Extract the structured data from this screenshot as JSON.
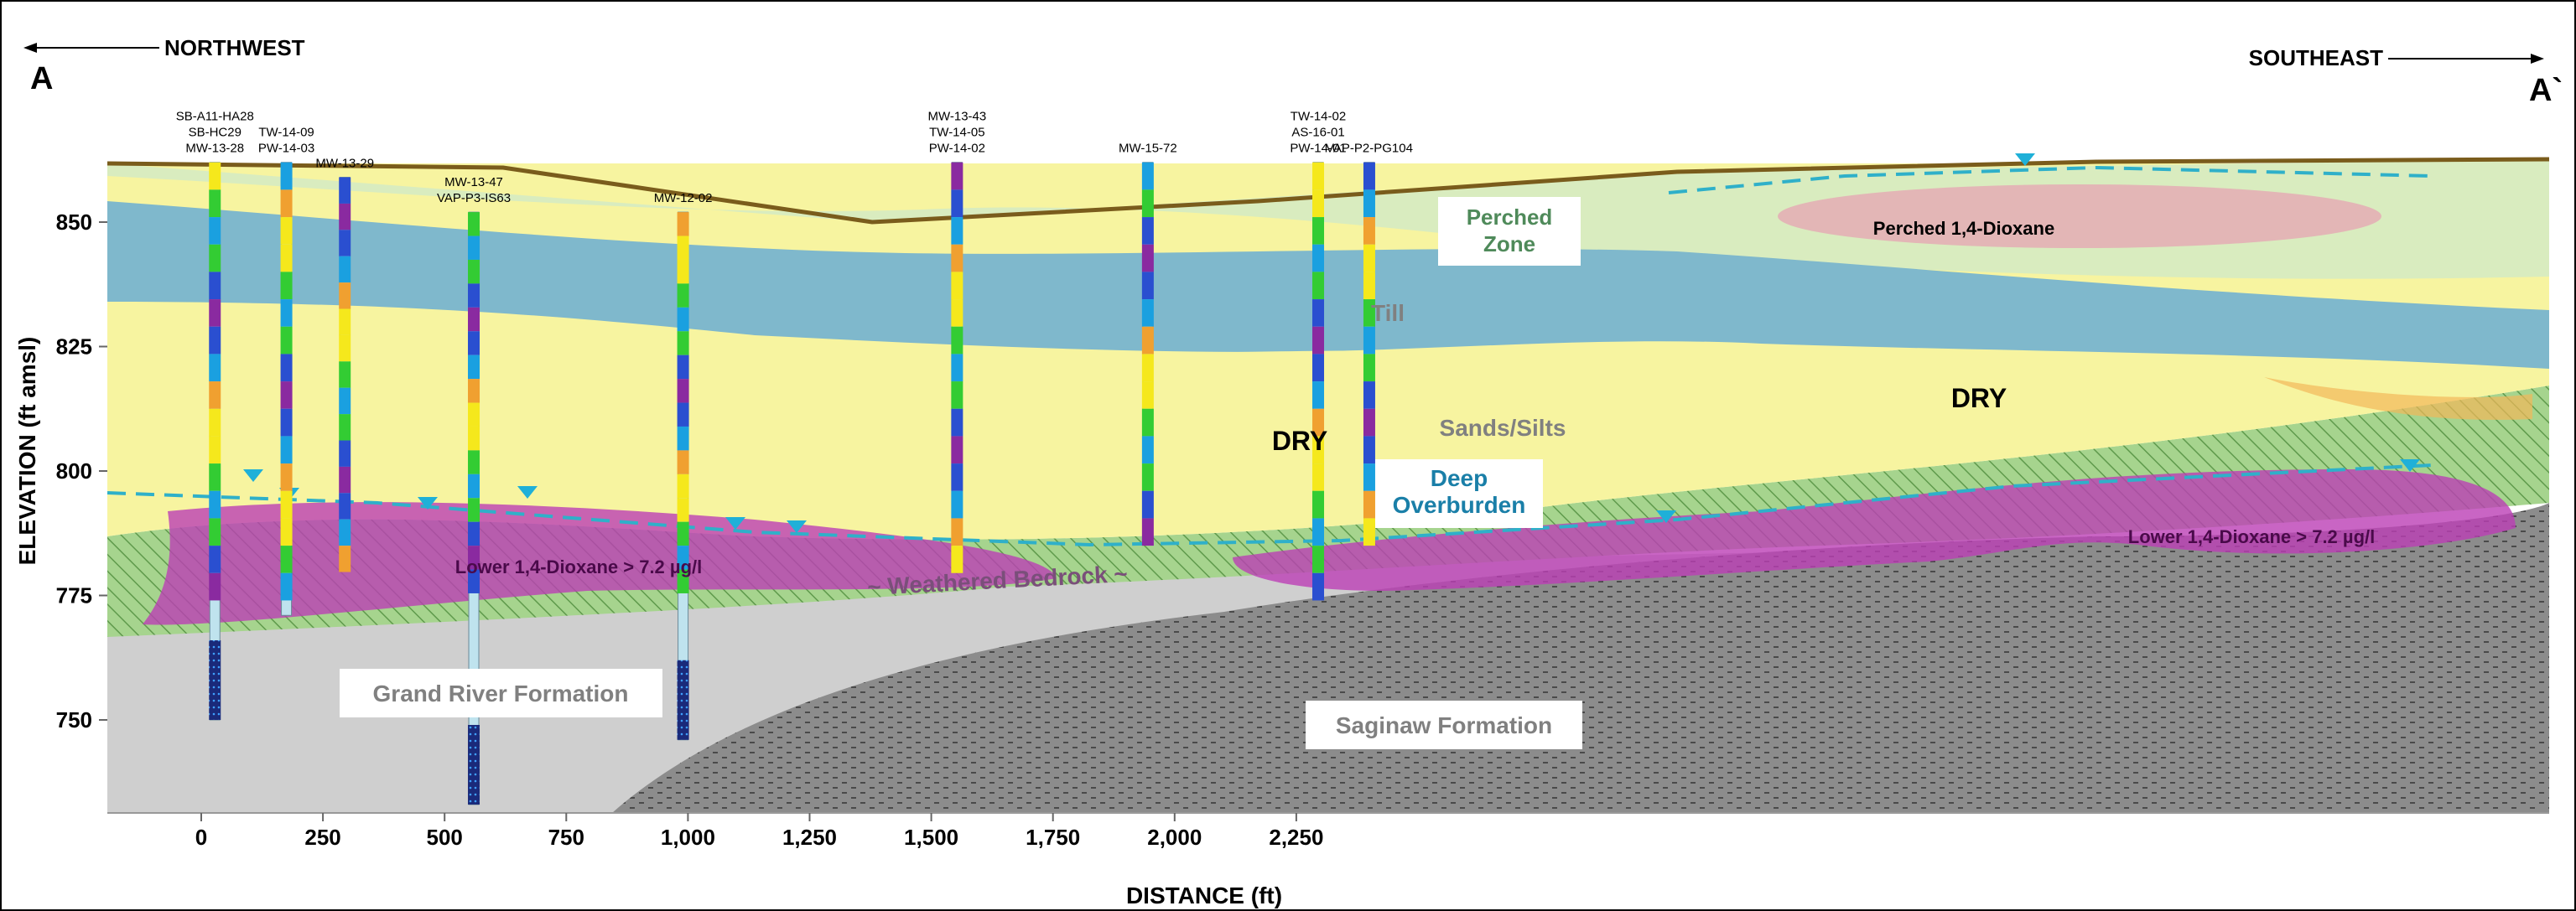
{
  "orientation": {
    "left_direction": "NORTHWEST",
    "right_direction": "SOUTHEAST",
    "left_label": "A",
    "right_label": "A`"
  },
  "axes": {
    "y_label": "ELEVATION (ft amsl)",
    "x_label": "DISTANCE (ft)",
    "y_ticks": [
      "850",
      "825",
      "800",
      "775",
      "750"
    ],
    "x_ticks": [
      "0",
      "250",
      "500",
      "750",
      "1,000",
      "1,250",
      "1,500",
      "1,750",
      "2,000",
      "2,250"
    ],
    "y_tick_values": [
      850,
      825,
      800,
      775,
      750
    ],
    "x_tick_values": [
      0,
      250,
      500,
      750,
      1000,
      1250,
      1500,
      1750,
      2000,
      2250
    ],
    "x_range": [
      -100,
      2430
    ],
    "y_range": [
      730,
      863
    ]
  },
  "wells": [
    {
      "id": "w1",
      "labels": [
        "SB-A11-HA28",
        "SB-HC29",
        "MW-13-28"
      ],
      "distance": 28
    },
    {
      "id": "w2",
      "labels": [
        "TW-14-09",
        "PW-14-03"
      ],
      "distance": 175
    },
    {
      "id": "w3",
      "labels": [
        "MW-13-29"
      ],
      "distance": 295
    },
    {
      "id": "w4",
      "labels": [
        "MW-13-47",
        "VAP-P3-IS63"
      ],
      "distance": 560
    },
    {
      "id": "w5",
      "labels": [
        "MW-12-02"
      ],
      "distance": 990
    },
    {
      "id": "w6",
      "labels": [
        "MW-13-43",
        "TW-14-05",
        "PW-14-02"
      ],
      "distance": 1553
    },
    {
      "id": "w7",
      "labels": [
        "MW-15-72"
      ],
      "distance": 1945
    },
    {
      "id": "w8",
      "labels": [
        "TW-14-02",
        "AS-16-01",
        "PW-14-01"
      ],
      "distance": 2295
    },
    {
      "id": "w9",
      "labels": [
        "VAP-P2-PG104"
      ],
      "distance": 2400
    }
  ],
  "units": {
    "perched_zone": "Perched\nZone",
    "till": "Till",
    "sands_silts": "Sands/Silts",
    "dry_left": "DRY",
    "dry_right": "DRY",
    "deep_overburden": "Deep\nOverburden",
    "weathered_bedrock": "~ Weathered  Bedrock ~",
    "grand_river": "Grand River Formation",
    "saginaw": "Saginaw Formation",
    "perched_dioxane": "Perched 1,4-Dioxane",
    "lower_dioxane_left": "Lower 1,4-Dioxane > 7.2 µg/l",
    "lower_dioxane_right": "Lower 1,4-Dioxane > 7.2 µg/l"
  },
  "colors": {
    "till": "#7fb8cc",
    "perched": "#d9ecbf",
    "sands": "#f7f4a0",
    "deep_overburden": "#9fd08a",
    "dioxane": "#bb3fb5",
    "perched_dioxane": "#e3b6b6",
    "bedrock": "#cfcfcf",
    "saginaw": "#8c8c8c",
    "ground": "#7a5c1c",
    "water_table": "#2fb0c9",
    "perched_zone_text": "#4f8a5a",
    "deep_overburden_text": "#1a7fa8"
  }
}
